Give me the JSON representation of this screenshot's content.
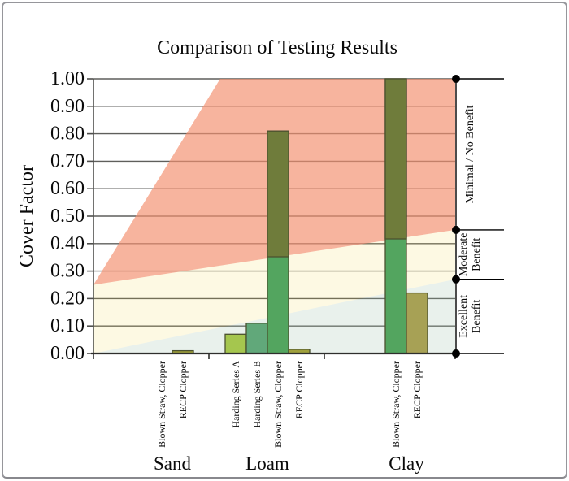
{
  "window": {
    "background": "#ffffff",
    "frame_border_color": "#96969b"
  },
  "chart_data": {
    "type": "bar",
    "title": "Comparison of Testing Results",
    "xlabel": "",
    "ylabel": "Cover Factor",
    "ylim": [
      0,
      1
    ],
    "ytick_step": 0.1,
    "ytick_decimals": 2,
    "grid": true,
    "grid_color": "#5f5f5c",
    "groups": [
      {
        "label": "Sand",
        "bars": [
          {
            "label": "Blown Straw, Clopper",
            "value": 0.0,
            "color": "#53A55F"
          },
          {
            "label": "RECP Clopper",
            "value": 0.01,
            "color": "#9FA03C"
          }
        ]
      },
      {
        "label": "Loam",
        "bars": [
          {
            "label": "Harding Series A",
            "value": 0.07,
            "color": "#A5C64E"
          },
          {
            "label": "Harding Series B",
            "value": 0.11,
            "color": "#61A87A"
          },
          {
            "label": "Blown Straw, Clopper",
            "value": 0.81,
            "color": "#53A55F",
            "color_in_minimal_zone": "#6F7C3B"
          },
          {
            "label": "RECP Clopper",
            "value": 0.015,
            "color": "#9FA03C"
          }
        ]
      },
      {
        "label": "Clay",
        "bars": [
          {
            "label": "Blown Straw, Clopper",
            "value": 1.0,
            "color": "#53A55F",
            "color_in_minimal_zone": "#6F7C3B"
          },
          {
            "label": "RECP Clopper",
            "value": 0.22,
            "color": "#A7A155"
          }
        ]
      }
    ],
    "bar_outline_color": "#4b512f",
    "zones": [
      {
        "name": "minimal-no-benefit",
        "label_lines": [
          "Minimal / No Benefit"
        ],
        "fill": "rgba(243,145,112,0.68)",
        "color_over_white": "#F7B39C",
        "left_values": [
          0.25,
          0.25
        ],
        "right_values": [
          0.45,
          0.45
        ],
        "reaches_top_at_fraction": 0.35
      },
      {
        "name": "moderate-benefit",
        "label_lines": [
          "Moderate",
          "Benefit"
        ],
        "fill": "rgba(242,215,68,0.15)",
        "color_over_white": "#FCF8E3",
        "left_values": [
          0.25,
          0.0
        ],
        "right_values": [
          0.45,
          0.27
        ]
      },
      {
        "name": "excellent-benefit",
        "label_lines": [
          "Excellent",
          "Benefit"
        ],
        "fill": "rgba(155,191,169,0.22)",
        "color_over_white": "#E9F0EA",
        "left_values": [
          0.0,
          0.0
        ],
        "right_values": [
          0.27,
          0.0
        ]
      }
    ],
    "bracket": {
      "values": [
        1.0,
        0.45,
        0.27,
        0.0
      ],
      "dot_color": "#000000"
    },
    "legend": null
  }
}
